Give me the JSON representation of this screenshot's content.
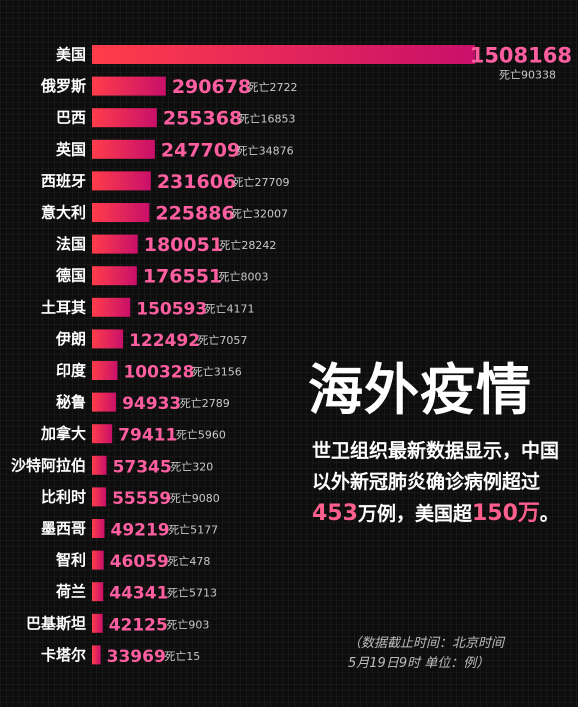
{
  "chart_data": {
    "type": "bar",
    "orientation": "horizontal",
    "deaths_prefix": "死亡",
    "categories": [
      "美国",
      "俄罗斯",
      "巴西",
      "英国",
      "西班牙",
      "意大利",
      "法国",
      "德国",
      "土耳其",
      "伊朗",
      "印度",
      "秘鲁",
      "加拿大",
      "沙特阿拉伯",
      "比利时",
      "墨西哥",
      "智利",
      "荷兰",
      "巴基斯坦",
      "卡塔尔"
    ],
    "values": [
      1508168,
      290678,
      255368,
      247709,
      231606,
      225886,
      180051,
      176551,
      150593,
      122492,
      100328,
      94933,
      79411,
      57345,
      55559,
      49219,
      46059,
      44341,
      42125,
      33969
    ],
    "deaths": [
      90338,
      2722,
      16853,
      34876,
      27709,
      32007,
      28242,
      8003,
      4171,
      7057,
      3156,
      2789,
      5960,
      320,
      9080,
      5177,
      478,
      5713,
      903,
      15
    ],
    "colors": {
      "bar_start": "#ff3d4a",
      "bar_end": "#c8106a",
      "value_top": "#ff66b3",
      "value_low": "#ff6a7a"
    }
  },
  "panel": {
    "title": "海外疫情",
    "desc_1": "世卫组织最新数据显示，中国以外新冠肺炎确诊病例超过",
    "desc_hl_1": "453",
    "desc_2": "万例，美国超",
    "desc_hl_2": "150万",
    "desc_3": "。",
    "note_1": "（数据截止时间：北京时间",
    "note_2": "5月19日9时  单位：例）"
  }
}
